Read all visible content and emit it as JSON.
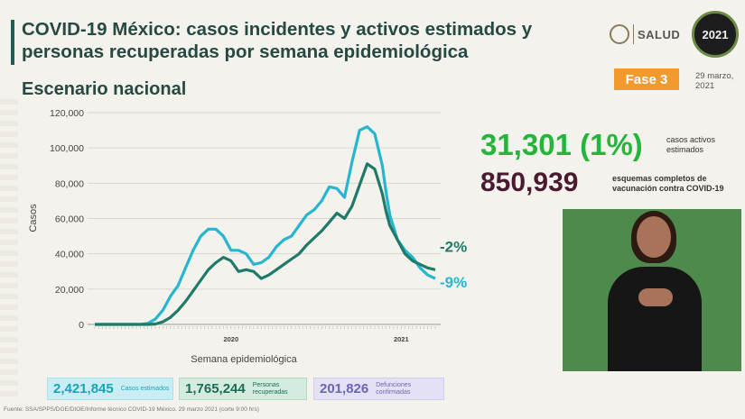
{
  "header": {
    "title": "COVID-19 México: casos incidentes y activos estimados y personas recuperadas por semana epidemiológica",
    "subtitle": "Escenario nacional",
    "salud_logo_text": "SALUD",
    "badge_2021_text": "2021",
    "phase_label": "Fase 3",
    "date": "29 marzo, 2021"
  },
  "stats": {
    "active_cases_value": "31,301 (1%)",
    "active_cases_label": "casos activos estimados",
    "vaccination_value": "850,939",
    "vaccination_label": "esquemas completos de vacunación contra COVID-19"
  },
  "summary_boxes": [
    {
      "value": "2,421,845",
      "label": "Casos estimados"
    },
    {
      "value": "1,765,244",
      "label": "Personas recuperadas"
    },
    {
      "value": "201,826",
      "label": "Defunciones confirmadas"
    }
  ],
  "source_text": "Fuente: SSA/SPPS/DGE/DIOE/Informe técnico COVID-19 México. 29 marzo 2021 (corte 9:00 hrs)",
  "colors": {
    "cases_line": "#26b6cf",
    "recovered_line": "#1f7a68",
    "title": "#264a43",
    "active_green": "#25b53d",
    "vaccine_maroon": "#4a1a30",
    "phase_orange": "#f29a2e"
  },
  "chart_data": {
    "type": "line",
    "title": "",
    "xlabel": "Semana epidemiológica",
    "ylabel": "Casos",
    "ylim": [
      0,
      120000
    ],
    "yticks": [
      0,
      20000,
      40000,
      60000,
      80000,
      100000,
      120000
    ],
    "ytick_labels": [
      "0",
      "20,000",
      "40,000",
      "60,000",
      "80,000",
      "100,000",
      "120,000"
    ],
    "year_labels": [
      {
        "week": 36,
        "label": "2020"
      },
      {
        "week": 81,
        "label": "2021"
      }
    ],
    "x_weeks": [
      0,
      4,
      8,
      12,
      14,
      16,
      18,
      20,
      22,
      24,
      26,
      28,
      30,
      32,
      34,
      36,
      38,
      40,
      42,
      44,
      46,
      48,
      50,
      52,
      54,
      56,
      58,
      60,
      62,
      64,
      66,
      68,
      70,
      72,
      74,
      76,
      77,
      78,
      80,
      82,
      84,
      86,
      88,
      90
    ],
    "series": [
      {
        "values": [
          0,
          0,
          0,
          0,
          500,
          3000,
          8000,
          16000,
          22000,
          32000,
          42000,
          50000,
          54000,
          54000,
          50000,
          42000,
          42000,
          40000,
          34000,
          35000,
          38000,
          44000,
          48000,
          50000,
          56000,
          62000,
          65000,
          70000,
          78000,
          77000,
          72000,
          92000,
          110000,
          112000,
          108000,
          90000,
          75000,
          62000,
          48000,
          42000,
          38000,
          32000,
          28000,
          26000
        ],
        "end_label": "-9%"
      },
      {
        "values": [
          0,
          0,
          0,
          0,
          0,
          200,
          1500,
          4000,
          8000,
          13000,
          19000,
          25000,
          31000,
          35000,
          38000,
          36000,
          30000,
          31000,
          30000,
          26000,
          28000,
          31000,
          34000,
          37000,
          40000,
          45000,
          49000,
          53000,
          58000,
          63000,
          60000,
          67000,
          79000,
          91000,
          88000,
          74000,
          64000,
          56000,
          48000,
          40000,
          36000,
          34000,
          32000,
          31000
        ],
        "end_label": "-2%"
      }
    ]
  }
}
